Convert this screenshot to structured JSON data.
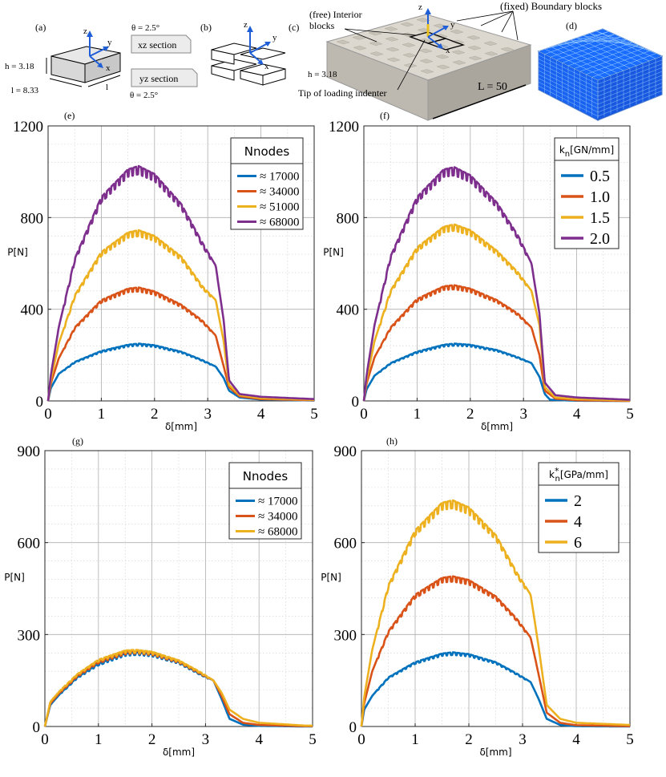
{
  "figure": {
    "top": {
      "a": {
        "label": "(a)",
        "h_label": "h = 3.18",
        "l_label": "l = 8.33",
        "l_short": "l",
        "axes": [
          "z",
          "y",
          "x"
        ],
        "theta_top": "θ = 2.5°",
        "theta_bottom": "θ = 2.5°",
        "xz_section": "xz section",
        "yz_section": "yz section"
      },
      "b": {
        "label": "(b)",
        "axes": [
          "z",
          "y",
          "x"
        ]
      },
      "c": {
        "label": "(c)",
        "free_interior_1": "(free) Interior",
        "free_interior_2": "blocks",
        "fixed_boundary": "(fixed) Boundary blocks",
        "h_label": "h = 3.18",
        "L_label": "L = 50",
        "tip_label": "Tip of loading indenter",
        "axes": [
          "z",
          "y",
          "x"
        ]
      },
      "d": {
        "label": "(d)"
      }
    },
    "colors": {
      "blue": "#0072BD",
      "orange": "#D95319",
      "yellow": "#EDB120",
      "purple": "#7E2F8E",
      "mesh_blue": "#1560ff"
    }
  },
  "chart_data": [
    {
      "panel": "(e)",
      "type": "line",
      "xlabel": "δ[mm]",
      "ylabel": "P[N]",
      "xlim": [
        0,
        5
      ],
      "ylim": [
        0,
        1200
      ],
      "xticks": [
        0,
        1,
        2,
        3,
        4,
        5
      ],
      "yticks": [
        0,
        400,
        800,
        1200
      ],
      "grid": true,
      "legend_title": "Nnodes",
      "legend_placement": "top-right",
      "series": [
        {
          "name": "≈ 17000",
          "color": "#0072BD",
          "peak": 250,
          "values": [
            [
              0,
              0
            ],
            [
              0.05,
              55
            ],
            [
              0.2,
              118
            ],
            [
              0.5,
              170
            ],
            [
              1.0,
              218
            ],
            [
              1.5,
              245
            ],
            [
              1.7,
              250
            ],
            [
              2.0,
              243
            ],
            [
              2.5,
              215
            ],
            [
              2.9,
              178
            ],
            [
              3.15,
              150
            ],
            [
              3.3,
              100
            ],
            [
              3.4,
              45
            ],
            [
              3.6,
              15
            ],
            [
              4.0,
              6
            ],
            [
              5.0,
              2
            ]
          ]
        },
        {
          "name": "≈ 34000",
          "color": "#D95319",
          "peak": 495,
          "values": [
            [
              0,
              0
            ],
            [
              0.05,
              75
            ],
            [
              0.2,
              185
            ],
            [
              0.5,
              320
            ],
            [
              1.0,
              440
            ],
            [
              1.5,
              490
            ],
            [
              1.7,
              495
            ],
            [
              2.0,
              478
            ],
            [
              2.5,
              420
            ],
            [
              2.9,
              350
            ],
            [
              3.15,
              285
            ],
            [
              3.3,
              150
            ],
            [
              3.4,
              60
            ],
            [
              3.6,
              20
            ],
            [
              4.0,
              8
            ],
            [
              5.0,
              3
            ]
          ]
        },
        {
          "name": "≈ 51000",
          "color": "#EDB120",
          "peak": 745,
          "values": [
            [
              0,
              0
            ],
            [
              0.05,
              90
            ],
            [
              0.2,
              250
            ],
            [
              0.5,
              460
            ],
            [
              1.0,
              650
            ],
            [
              1.5,
              735
            ],
            [
              1.7,
              745
            ],
            [
              2.0,
              720
            ],
            [
              2.5,
              630
            ],
            [
              2.9,
              500
            ],
            [
              3.15,
              440
            ],
            [
              3.3,
              260
            ],
            [
              3.4,
              70
            ],
            [
              3.6,
              25
            ],
            [
              4.0,
              12
            ],
            [
              5.0,
              5
            ]
          ]
        },
        {
          "name": "≈ 68000",
          "color": "#7E2F8E",
          "peak": 1025,
          "values": [
            [
              0,
              0
            ],
            [
              0.05,
              110
            ],
            [
              0.2,
              320
            ],
            [
              0.5,
              620
            ],
            [
              1.0,
              890
            ],
            [
              1.5,
              1010
            ],
            [
              1.7,
              1025
            ],
            [
              2.0,
              990
            ],
            [
              2.5,
              860
            ],
            [
              2.9,
              690
            ],
            [
              3.15,
              590
            ],
            [
              3.3,
              350
            ],
            [
              3.4,
              90
            ],
            [
              3.6,
              30
            ],
            [
              4.0,
              18
            ],
            [
              5.0,
              8
            ]
          ]
        }
      ]
    },
    {
      "panel": "(f)",
      "type": "line",
      "xlabel": "δ[mm]",
      "ylabel": "P[N]",
      "xlim": [
        0,
        5
      ],
      "ylim": [
        0,
        1200
      ],
      "xticks": [
        0,
        1,
        2,
        3,
        4,
        5
      ],
      "yticks": [
        0,
        400,
        800,
        1200
      ],
      "grid": true,
      "legend_title": "kn[GN/mm]",
      "legend_title_main": "k",
      "legend_title_sub": "n",
      "legend_title_rest": "[GN/mm]",
      "legend_placement": "top-right",
      "series": [
        {
          "name": "0.5",
          "color": "#0072BD",
          "values": [
            [
              0,
              0
            ],
            [
              0.05,
              50
            ],
            [
              0.2,
              110
            ],
            [
              0.5,
              165
            ],
            [
              1.0,
              215
            ],
            [
              1.5,
              245
            ],
            [
              1.7,
              250
            ],
            [
              2.0,
              245
            ],
            [
              2.5,
              222
            ],
            [
              2.9,
              190
            ],
            [
              3.15,
              165
            ],
            [
              3.3,
              105
            ],
            [
              3.4,
              30
            ],
            [
              3.5,
              5
            ],
            [
              4.0,
              1
            ],
            [
              5.0,
              0
            ]
          ]
        },
        {
          "name": "1.0",
          "color": "#D95319",
          "values": [
            [
              0,
              0
            ],
            [
              0.05,
              75
            ],
            [
              0.2,
              190
            ],
            [
              0.5,
              320
            ],
            [
              1.0,
              445
            ],
            [
              1.5,
              500
            ],
            [
              1.7,
              505
            ],
            [
              2.0,
              490
            ],
            [
              2.5,
              440
            ],
            [
              2.9,
              380
            ],
            [
              3.15,
              320
            ],
            [
              3.3,
              200
            ],
            [
              3.4,
              45
            ],
            [
              3.6,
              10
            ],
            [
              4.0,
              3
            ],
            [
              5.0,
              0
            ]
          ]
        },
        {
          "name": "1.5",
          "color": "#EDB120",
          "values": [
            [
              0,
              0
            ],
            [
              0.05,
              90
            ],
            [
              0.2,
              260
            ],
            [
              0.5,
              480
            ],
            [
              1.0,
              670
            ],
            [
              1.5,
              760
            ],
            [
              1.7,
              770
            ],
            [
              2.0,
              745
            ],
            [
              2.5,
              655
            ],
            [
              2.9,
              560
            ],
            [
              3.15,
              480
            ],
            [
              3.3,
              330
            ],
            [
              3.4,
              60
            ],
            [
              3.6,
              15
            ],
            [
              4.0,
              8
            ],
            [
              5.0,
              2
            ]
          ]
        },
        {
          "name": "2.0",
          "color": "#7E2F8E",
          "values": [
            [
              0,
              0
            ],
            [
              0.05,
              110
            ],
            [
              0.2,
              330
            ],
            [
              0.5,
              630
            ],
            [
              1.0,
              890
            ],
            [
              1.5,
              1010
            ],
            [
              1.7,
              1020
            ],
            [
              2.0,
              985
            ],
            [
              2.5,
              865
            ],
            [
              2.9,
              720
            ],
            [
              3.15,
              600
            ],
            [
              3.3,
              380
            ],
            [
              3.4,
              80
            ],
            [
              3.6,
              25
            ],
            [
              4.0,
              15
            ],
            [
              5.0,
              5
            ]
          ]
        }
      ]
    },
    {
      "panel": "(g)",
      "type": "line",
      "xlabel": "δ[mm]",
      "ylabel": "P[N]",
      "xlim": [
        0,
        5
      ],
      "ylim": [
        0,
        900
      ],
      "xticks": [
        0,
        1,
        2,
        3,
        4,
        5
      ],
      "yticks": [
        0,
        300,
        600,
        900
      ],
      "grid": true,
      "legend_title": "Nnodes",
      "legend_placement": "top-right",
      "series": [
        {
          "name": "≈ 17000",
          "color": "#0072BD",
          "values": [
            [
              0,
              0
            ],
            [
              0.1,
              70
            ],
            [
              0.3,
              110
            ],
            [
              0.6,
              160
            ],
            [
              1.0,
              205
            ],
            [
              1.5,
              238
            ],
            [
              1.7,
              242
            ],
            [
              2.0,
              236
            ],
            [
              2.5,
              210
            ],
            [
              2.9,
              172
            ],
            [
              3.15,
              150
            ],
            [
              3.3,
              90
            ],
            [
              3.45,
              25
            ],
            [
              3.7,
              6
            ],
            [
              4.0,
              2
            ],
            [
              4.85,
              0
            ]
          ]
        },
        {
          "name": "≈ 34000",
          "color": "#D95319",
          "values": [
            [
              0,
              0
            ],
            [
              0.1,
              75
            ],
            [
              0.3,
              115
            ],
            [
              0.6,
              165
            ],
            [
              1.0,
              212
            ],
            [
              1.5,
              243
            ],
            [
              1.7,
              247
            ],
            [
              2.0,
              240
            ],
            [
              2.5,
              213
            ],
            [
              2.9,
              175
            ],
            [
              3.15,
              150
            ],
            [
              3.3,
              100
            ],
            [
              3.45,
              40
            ],
            [
              3.7,
              12
            ],
            [
              4.0,
              5
            ],
            [
              4.85,
              1
            ]
          ]
        },
        {
          "name": "≈ 68000",
          "color": "#EDB120",
          "values": [
            [
              0,
              0
            ],
            [
              0.1,
              80
            ],
            [
              0.3,
              120
            ],
            [
              0.6,
              170
            ],
            [
              1.0,
              218
            ],
            [
              1.5,
              248
            ],
            [
              1.7,
              250
            ],
            [
              2.0,
              244
            ],
            [
              2.5,
              216
            ],
            [
              2.9,
              178
            ],
            [
              3.15,
              150
            ],
            [
              3.3,
              110
            ],
            [
              3.45,
              55
            ],
            [
              3.7,
              25
            ],
            [
              4.0,
              12
            ],
            [
              4.85,
              3
            ]
          ]
        }
      ]
    },
    {
      "panel": "(h)",
      "type": "line",
      "xlabel": "δ[mm]",
      "ylabel": "P[N]",
      "xlim": [
        0,
        5
      ],
      "ylim": [
        0,
        900
      ],
      "xticks": [
        0,
        1,
        2,
        3,
        4,
        5
      ],
      "yticks": [
        0,
        300,
        600,
        900
      ],
      "grid": true,
      "legend_title": "kn*[GPa/mm]",
      "legend_title_main": "k",
      "legend_title_sub": "n",
      "legend_title_sup": "*",
      "legend_title_rest": "[GPa/mm]",
      "legend_placement": "top-right",
      "series": [
        {
          "name": "2",
          "color": "#0072BD",
          "values": [
            [
              0,
              0
            ],
            [
              0.05,
              55
            ],
            [
              0.2,
              100
            ],
            [
              0.5,
              160
            ],
            [
              1.0,
              210
            ],
            [
              1.5,
              238
            ],
            [
              1.7,
              242
            ],
            [
              2.0,
              236
            ],
            [
              2.5,
              210
            ],
            [
              2.9,
              172
            ],
            [
              3.15,
              145
            ],
            [
              3.3,
              90
            ],
            [
              3.45,
              25
            ],
            [
              3.7,
              5
            ],
            [
              4.0,
              1
            ],
            [
              5.0,
              0
            ]
          ]
        },
        {
          "name": "4",
          "color": "#D95319",
          "values": [
            [
              0,
              0
            ],
            [
              0.05,
              75
            ],
            [
              0.2,
              180
            ],
            [
              0.5,
              310
            ],
            [
              1.0,
              430
            ],
            [
              1.5,
              485
            ],
            [
              1.7,
              490
            ],
            [
              2.0,
              478
            ],
            [
              2.5,
              425
            ],
            [
              2.9,
              350
            ],
            [
              3.15,
              290
            ],
            [
              3.3,
              170
            ],
            [
              3.45,
              45
            ],
            [
              3.7,
              12
            ],
            [
              4.0,
              4
            ],
            [
              5.0,
              1
            ]
          ]
        },
        {
          "name": "6",
          "color": "#EDB120",
          "values": [
            [
              0,
              0
            ],
            [
              0.05,
              95
            ],
            [
              0.2,
              250
            ],
            [
              0.5,
              460
            ],
            [
              1.0,
              640
            ],
            [
              1.5,
              730
            ],
            [
              1.7,
              738
            ],
            [
              2.0,
              715
            ],
            [
              2.5,
              625
            ],
            [
              2.9,
              500
            ],
            [
              3.15,
              430
            ],
            [
              3.3,
              260
            ],
            [
              3.45,
              70
            ],
            [
              3.7,
              25
            ],
            [
              4.0,
              12
            ],
            [
              5.0,
              5
            ]
          ]
        }
      ]
    }
  ]
}
